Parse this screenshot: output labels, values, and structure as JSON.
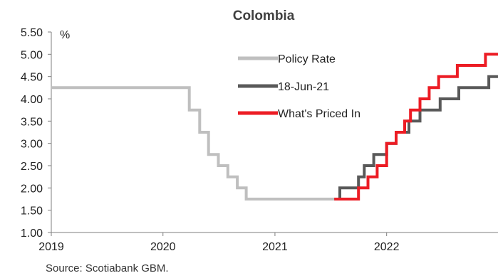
{
  "chart_data": {
    "type": "line",
    "title": "Colombia",
    "ylabel": "%",
    "xlabel": "",
    "ylim": [
      1.0,
      5.5
    ],
    "yticks": [
      "1.00",
      "1.50",
      "2.00",
      "2.50",
      "3.00",
      "3.50",
      "4.00",
      "4.50",
      "5.00",
      "5.50"
    ],
    "xlim": [
      "2019-01-01",
      "2022-12-31"
    ],
    "xticks": [
      "2019",
      "2020",
      "2021",
      "2022"
    ],
    "legend_position": "top-center",
    "grid": false,
    "series": [
      {
        "name": "Policy Rate",
        "color": "#bfbfbf",
        "step": true,
        "points": [
          [
            "2019-01-01",
            4.25
          ],
          [
            "2020-03-27",
            3.75
          ],
          [
            "2020-04-30",
            3.25
          ],
          [
            "2020-05-29",
            2.75
          ],
          [
            "2020-06-30",
            2.5
          ],
          [
            "2020-07-31",
            2.25
          ],
          [
            "2020-08-31",
            2.0
          ],
          [
            "2020-09-29",
            1.75
          ],
          [
            "2021-07-14",
            1.75
          ]
        ]
      },
      {
        "name": "18-Jun-21",
        "color": "#595959",
        "step": true,
        "points": [
          [
            "2021-07-14",
            1.75
          ],
          [
            "2021-08-01",
            2.0
          ],
          [
            "2021-10-01",
            2.25
          ],
          [
            "2021-10-20",
            2.5
          ],
          [
            "2021-11-20",
            2.75
          ],
          [
            "2022-01-01",
            3.0
          ],
          [
            "2022-02-01",
            3.25
          ],
          [
            "2022-03-15",
            3.5
          ],
          [
            "2022-04-20",
            3.75
          ],
          [
            "2022-06-25",
            4.0
          ],
          [
            "2022-08-25",
            4.25
          ],
          [
            "2022-12-01",
            4.5
          ],
          [
            "2022-12-31",
            4.5
          ]
        ]
      },
      {
        "name": "What's Priced In",
        "color": "#ec1c24",
        "step": true,
        "points": [
          [
            "2021-07-14",
            1.75
          ],
          [
            "2021-10-01",
            2.0
          ],
          [
            "2021-11-01",
            2.25
          ],
          [
            "2021-12-01",
            2.5
          ],
          [
            "2022-01-01",
            3.0
          ],
          [
            "2022-02-01",
            3.25
          ],
          [
            "2022-03-01",
            3.5
          ],
          [
            "2022-03-20",
            3.75
          ],
          [
            "2022-04-20",
            4.0
          ],
          [
            "2022-05-20",
            4.25
          ],
          [
            "2022-06-20",
            4.5
          ],
          [
            "2022-08-20",
            4.75
          ],
          [
            "2022-11-20",
            5.0
          ],
          [
            "2022-12-31",
            5.0
          ]
        ]
      }
    ]
  },
  "source": "Source: Scotiabank GBM."
}
